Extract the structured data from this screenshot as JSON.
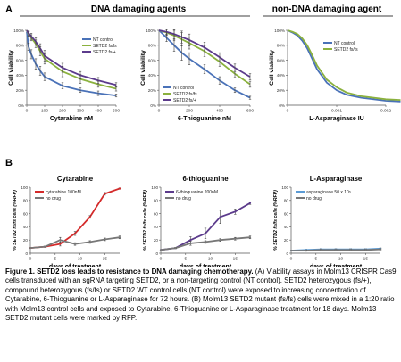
{
  "figure": {
    "panel_a_label": "A",
    "panel_b_label": "B",
    "section_dna": "DNA damaging agents",
    "section_nondna": "non-DNA damaging agent"
  },
  "chart_data": [
    {
      "id": "a1",
      "type": "line",
      "xlabel": "Cytarabine nM",
      "ylabel": "Cell viability",
      "xlim": [
        0,
        500
      ],
      "ylim": [
        0,
        100
      ],
      "xticks": [
        0,
        100,
        200,
        300,
        400,
        500
      ],
      "yticks": [
        "0%",
        "20%",
        "40%",
        "60%",
        "80%",
        "100%"
      ],
      "legend": "top-right",
      "series": [
        {
          "name": "NT control",
          "color": "#4a72b8",
          "x": [
            0,
            10,
            25,
            50,
            75,
            100,
            200,
            300,
            400,
            500
          ],
          "y": [
            98,
            78,
            68,
            55,
            46,
            38,
            26,
            20,
            16,
            13
          ],
          "err": [
            0,
            5,
            6,
            7,
            6,
            5,
            4,
            3,
            3,
            2
          ]
        },
        {
          "name": "SETD2 fs/fs",
          "color": "#8bb13e",
          "x": [
            0,
            10,
            25,
            50,
            75,
            100,
            200,
            300,
            400,
            500
          ],
          "y": [
            100,
            95,
            90,
            82,
            72,
            62,
            45,
            35,
            28,
            22
          ],
          "err": [
            0,
            3,
            4,
            5,
            6,
            7,
            7,
            6,
            4,
            3
          ]
        },
        {
          "name": "SETD2 fs/+",
          "color": "#5c3b8c",
          "x": [
            0,
            10,
            25,
            50,
            75,
            100,
            200,
            300,
            400,
            500
          ],
          "y": [
            100,
            96,
            92,
            85,
            76,
            66,
            50,
            40,
            33,
            27
          ],
          "err": [
            0,
            3,
            4,
            5,
            6,
            7,
            6,
            5,
            4,
            3
          ]
        }
      ]
    },
    {
      "id": "a2",
      "type": "line",
      "xlabel": "6-Thioguanine nM",
      "ylabel": "Cell viability",
      "xlim": [
        0,
        600
      ],
      "ylim": [
        0,
        100
      ],
      "xticks": [
        0,
        200,
        400,
        600
      ],
      "yticks": [
        "0%",
        "20%",
        "40%",
        "60%",
        "80%",
        "100%"
      ],
      "legend": "bottom-left",
      "series": [
        {
          "name": "NT control",
          "color": "#4a72b8",
          "x": [
            0,
            50,
            100,
            150,
            200,
            300,
            400,
            500,
            600
          ],
          "y": [
            100,
            90,
            80,
            70,
            62,
            48,
            33,
            20,
            10
          ],
          "err": [
            0,
            5,
            8,
            10,
            8,
            6,
            5,
            3,
            2
          ]
        },
        {
          "name": "SETD2 fs/fs",
          "color": "#8bb13e",
          "x": [
            0,
            50,
            100,
            150,
            200,
            300,
            400,
            500,
            600
          ],
          "y": [
            100,
            97,
            93,
            88,
            83,
            72,
            58,
            42,
            28
          ],
          "err": [
            0,
            4,
            7,
            9,
            8,
            7,
            6,
            5,
            4
          ]
        },
        {
          "name": "SETD2 fs/+",
          "color": "#5c3b8c",
          "x": [
            0,
            50,
            100,
            150,
            200,
            300,
            400,
            500,
            600
          ],
          "y": [
            100,
            98,
            95,
            91,
            87,
            77,
            64,
            50,
            38
          ],
          "err": [
            0,
            4,
            6,
            8,
            8,
            7,
            6,
            5,
            4
          ]
        }
      ]
    },
    {
      "id": "a3",
      "type": "line",
      "xlabel": "L-Asparaginase IU",
      "ylabel": "Cell viability",
      "xlim": [
        0,
        0.002
      ],
      "ylim": [
        0,
        100
      ],
      "xticks": [
        "0",
        "0.001",
        "0.002"
      ],
      "yticks": [
        "0%",
        "20%",
        "40%",
        "60%",
        "80%",
        "100%"
      ],
      "legend": "top-right",
      "series": [
        {
          "name": "NT control",
          "color": "#4a72b8",
          "x": [
            0,
            0.0001,
            0.0002,
            0.0003,
            0.0004,
            0.0005,
            0.0006,
            0.0008,
            0.001,
            0.0012,
            0.0015,
            0.002,
            0.0023
          ],
          "y": [
            100,
            97,
            93,
            86,
            76,
            62,
            48,
            30,
            20,
            14,
            10,
            6,
            5
          ]
        },
        {
          "name": "SETD2 fs/fs",
          "color": "#8bb13e",
          "x": [
            0,
            0.0001,
            0.0002,
            0.0003,
            0.0004,
            0.0005,
            0.0006,
            0.0008,
            0.001,
            0.0012,
            0.0015,
            0.002,
            0.0023
          ],
          "y": [
            100,
            98,
            95,
            89,
            80,
            67,
            53,
            34,
            24,
            17,
            12,
            8,
            7
          ]
        }
      ]
    },
    {
      "id": "b1",
      "type": "line",
      "title": "Cytarabine",
      "xlabel": "days of treatment",
      "ylabel": "% SETD2 fs/fs cells (%RFP)",
      "xlim": [
        0,
        18
      ],
      "ylim": [
        0,
        100
      ],
      "xticks": [
        0,
        5,
        10,
        15
      ],
      "yticks": [
        "0",
        "20",
        "40",
        "60",
        "80",
        "100"
      ],
      "legend": "top-left",
      "series": [
        {
          "name": "cytarabine 100nM",
          "color": "#d42a2a",
          "x": [
            0,
            3,
            6,
            9,
            12,
            15,
            18
          ],
          "y": [
            8,
            10,
            14,
            30,
            55,
            90,
            98
          ],
          "err": [
            0,
            1,
            3,
            3,
            2,
            2,
            1
          ]
        },
        {
          "name": "no drug",
          "color": "#777777",
          "x": [
            0,
            3,
            6,
            9,
            12,
            15,
            18
          ],
          "y": [
            8,
            10,
            20,
            14,
            17,
            21,
            24
          ],
          "err": [
            0,
            1,
            4,
            2,
            2,
            2,
            2
          ]
        }
      ]
    },
    {
      "id": "b2",
      "type": "line",
      "title": "6-thioguanine",
      "xlabel": "days of treatment",
      "ylabel": "% SETD2 fs/fs cells (%RFP)",
      "xlim": [
        0,
        18
      ],
      "ylim": [
        0,
        100
      ],
      "xticks": [
        0,
        5,
        10,
        15
      ],
      "yticks": [
        "0",
        "20",
        "40",
        "60",
        "80",
        "100"
      ],
      "legend": "top-left",
      "series": [
        {
          "name": "6-thioguanine 200nM",
          "color": "#5c3b8c",
          "x": [
            0,
            3,
            6,
            9,
            12,
            15,
            18
          ],
          "y": [
            5,
            8,
            20,
            30,
            55,
            63,
            76
          ],
          "err": [
            0,
            1,
            5,
            8,
            10,
            4,
            2
          ]
        },
        {
          "name": "no drug",
          "color": "#777777",
          "x": [
            0,
            3,
            6,
            9,
            12,
            15,
            18
          ],
          "y": [
            5,
            8,
            15,
            17,
            20,
            22,
            24
          ],
          "err": [
            0,
            1,
            3,
            2,
            2,
            2,
            2
          ]
        }
      ]
    },
    {
      "id": "b3",
      "type": "line",
      "title": "L-Asparaginase",
      "xlabel": "days of treatment",
      "ylabel": "% SETD2 fs/fs cells (%RFP)",
      "xlim": [
        0,
        18
      ],
      "ylim": [
        0,
        100
      ],
      "xticks": [
        0,
        5,
        10,
        15
      ],
      "yticks": [
        "0",
        "20",
        "40",
        "60",
        "80",
        "100"
      ],
      "legend": "top-left",
      "series": [
        {
          "name": "asparaginase 50 x 10⁵",
          "color": "#5b9bd5",
          "x": [
            0,
            3,
            6,
            9,
            12,
            15,
            18
          ],
          "y": [
            4,
            5,
            6,
            6,
            6,
            6,
            7
          ],
          "err": [
            0,
            1,
            1,
            1,
            1,
            1,
            1
          ]
        },
        {
          "name": "no drug",
          "color": "#777777",
          "x": [
            0,
            3,
            6,
            9,
            12,
            15,
            18
          ],
          "y": [
            4,
            4,
            5,
            5,
            5,
            5,
            6
          ],
          "err": [
            0,
            1,
            1,
            1,
            1,
            1,
            1
          ]
        }
      ]
    }
  ],
  "caption": {
    "bold_lead": "Figure 1. SETD2 loss leads to resistance to DNA damaging chemotherapy.",
    "body": " (A) Viability assays in Molm13 CRISPR Cas9 cells transduced with an sgRNA targeting SETD2, or a non-targeting control (NT control). SETD2 heterozygous (fs/+), compound heterozygous (fs/fs) or SETD2 WT control cells (NT control) were exposed to increasing concentration of Cytarabine, 6-Thioguanine or L-Asparaginase for 72 hours. (B) Molm13 SETD2 mutant (fs/fs) cells were mixed in a 1:20 ratio with Molm13 control cells and exposed to Cytarabine, 6-Thioguanine or L-Asparaginase treatment for 18 days. Molm13 SETD2 mutant cells were marked by RFP."
  }
}
